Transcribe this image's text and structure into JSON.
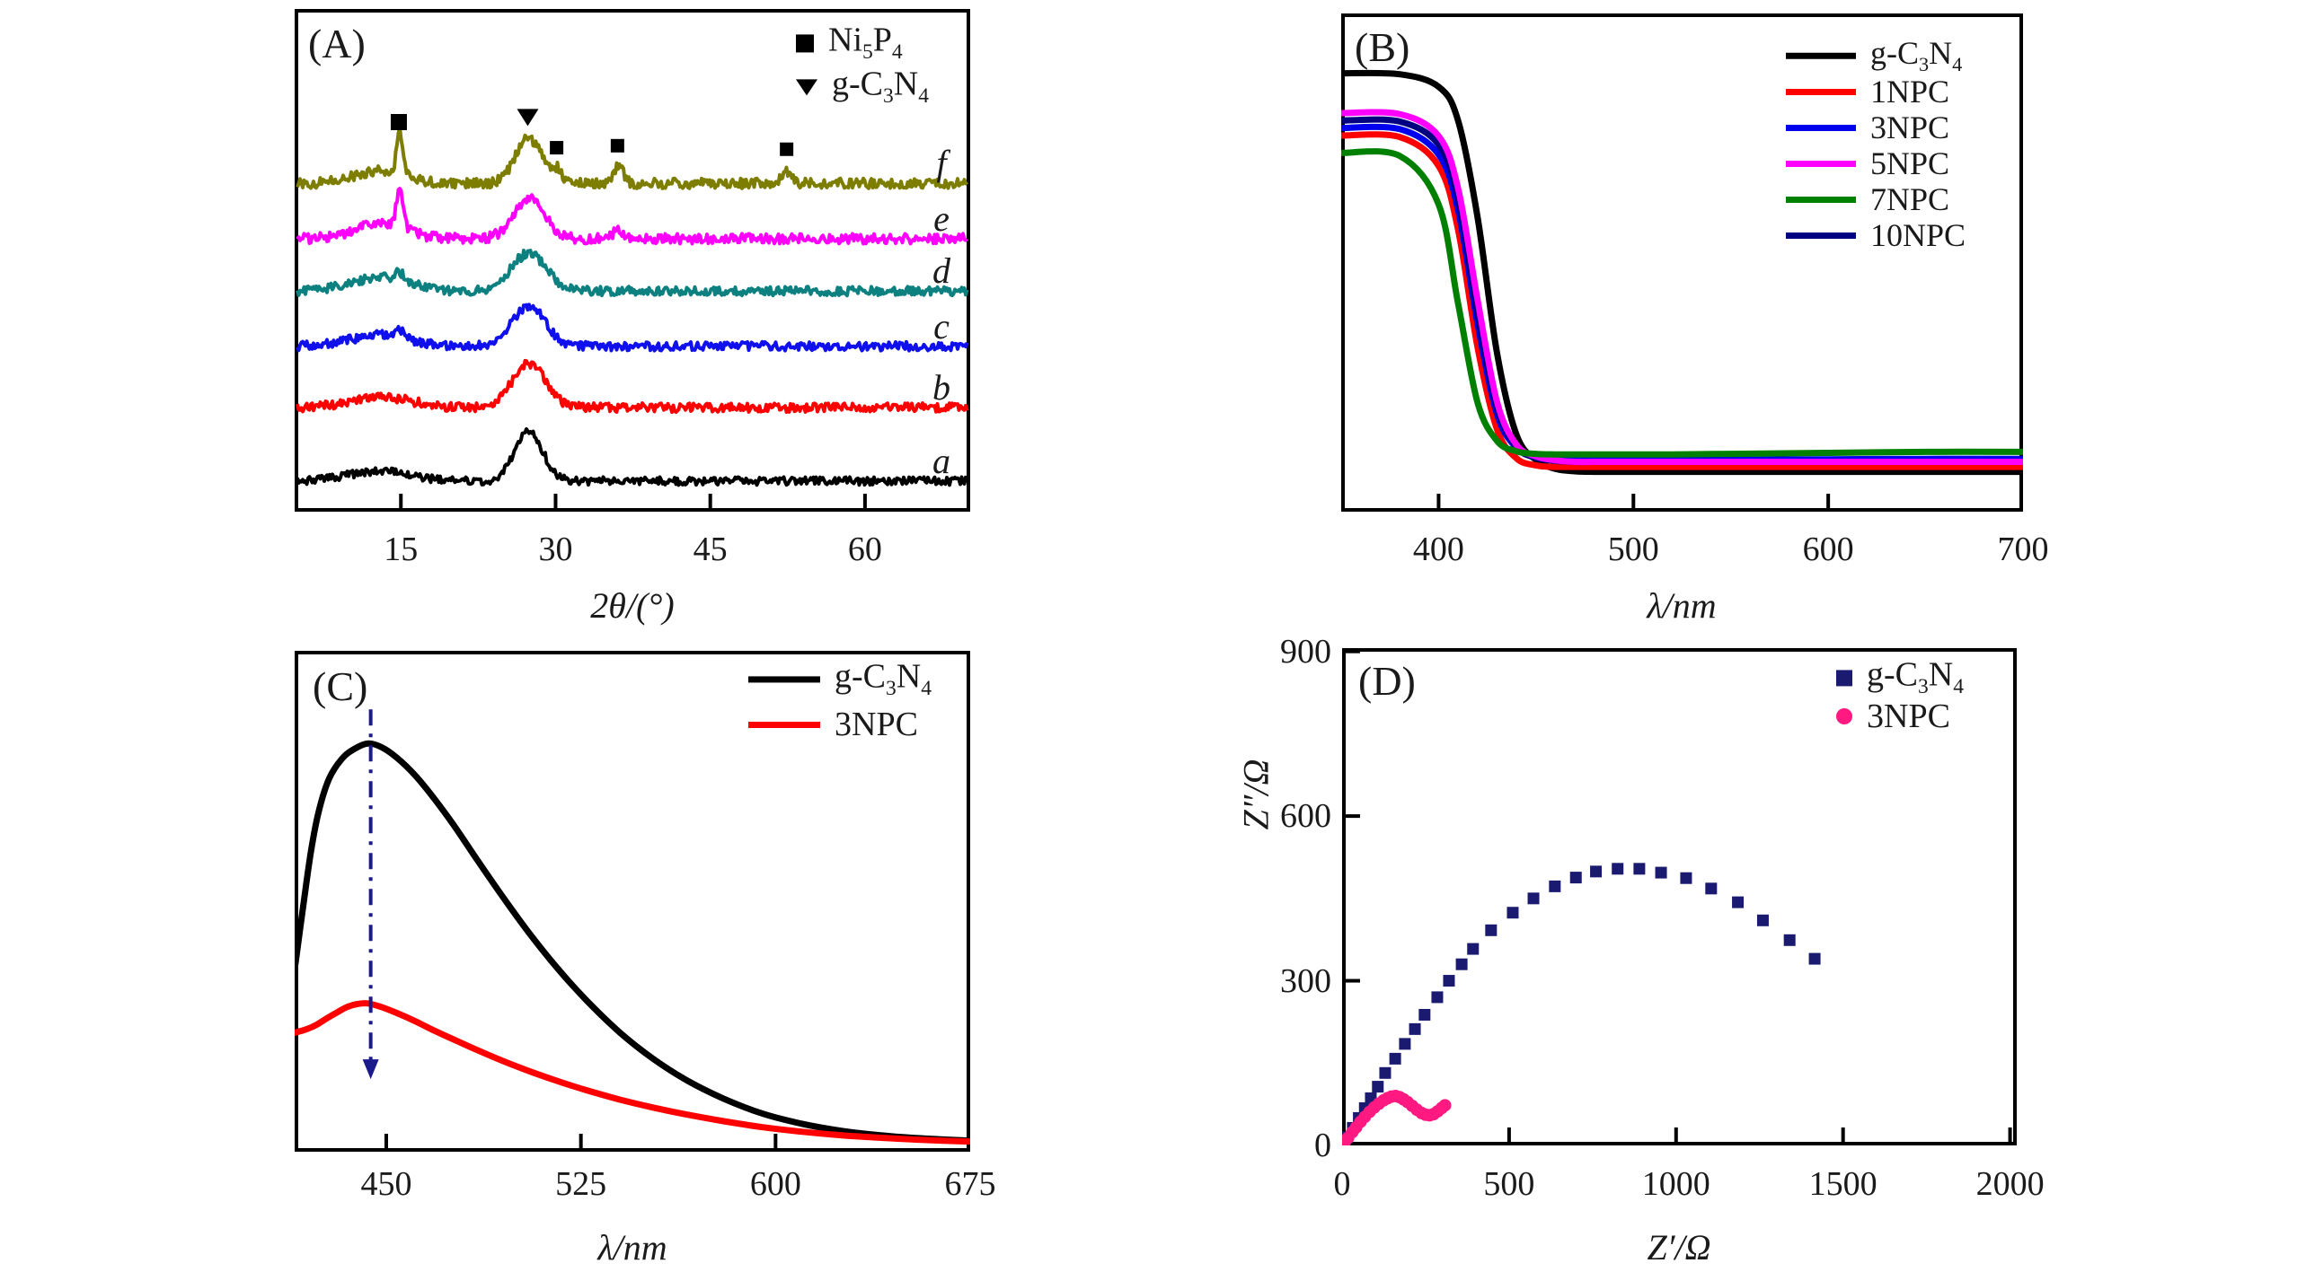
{
  "figure": {
    "background": "#ffffff",
    "text_color": "#1a1a1a"
  },
  "chart_data": [
    {
      "id": "A",
      "type": "line",
      "panel_label": "(A)",
      "xlabel": "2θ/(°)",
      "ylabel": "",
      "xticks": [
        15,
        30,
        45,
        60
      ],
      "xrange": [
        4.7,
        70.2
      ],
      "grid": false,
      "legend_position": "top-right-inside",
      "legend": [
        {
          "marker": "square",
          "color": "#000000",
          "label": "Ni₅P₄"
        },
        {
          "marker": "triangle-down",
          "color": "#000000",
          "label": "g-C₃N₄"
        }
      ],
      "description": "Stacked XRD patterns, curves a–f offset vertically, broad g-C₃N₄ peaks near 13° and 27.4°; e and f also show sharp Ni₅P₄ peaks",
      "series": [
        {
          "name": "a",
          "color": "#000000",
          "offset": 0.939,
          "noise": 0.008,
          "peaks": [
            {
              "c": 13.0,
              "h": 0.02,
              "w": 3.0
            },
            {
              "c": 27.4,
              "h": 0.098,
              "w": 1.35
            }
          ]
        },
        {
          "name": "b",
          "color": "#ff0000",
          "offset": 0.793,
          "noise": 0.009,
          "peaks": [
            {
              "c": 13.0,
              "h": 0.021,
              "w": 3.0
            },
            {
              "c": 27.4,
              "h": 0.088,
              "w": 1.6
            }
          ]
        },
        {
          "name": "c",
          "color": "#1010ee",
          "offset": 0.671,
          "noise": 0.009,
          "peaks": [
            {
              "c": 13.0,
              "h": 0.023,
              "w": 2.8
            },
            {
              "c": 14.9,
              "h": 0.013,
              "w": 0.4
            },
            {
              "c": 27.4,
              "h": 0.08,
              "w": 1.6
            }
          ]
        },
        {
          "name": "d",
          "color": "#0d8080",
          "offset": 0.561,
          "noise": 0.009,
          "peaks": [
            {
              "c": 13.0,
              "h": 0.027,
              "w": 2.8
            },
            {
              "c": 14.9,
              "h": 0.016,
              "w": 0.4
            },
            {
              "c": 27.4,
              "h": 0.075,
              "w": 1.7
            }
          ]
        },
        {
          "name": "e",
          "color": "#ff00ff",
          "offset": 0.457,
          "noise": 0.01,
          "peaks": [
            {
              "c": 13.0,
              "h": 0.029,
              "w": 2.5
            },
            {
              "c": 14.9,
              "h": 0.073,
              "w": 0.35
            },
            {
              "c": 27.4,
              "h": 0.079,
              "w": 1.5
            },
            {
              "c": 36.1,
              "h": 0.018,
              "w": 0.5
            }
          ]
        },
        {
          "name": "f",
          "color": "#7d7d00",
          "offset": 0.347,
          "noise": 0.01,
          "peaks": [
            {
              "c": 13.0,
              "h": 0.025,
              "w": 2.5
            },
            {
              "c": 14.9,
              "h": 0.086,
              "w": 0.3
            },
            {
              "c": 27.4,
              "h": 0.089,
              "w": 1.3
            },
            {
              "c": 30.2,
              "h": 0.023,
              "w": 0.45
            },
            {
              "c": 36.1,
              "h": 0.034,
              "w": 0.5
            },
            {
              "c": 52.4,
              "h": 0.023,
              "w": 0.45
            }
          ]
        }
      ],
      "peak_markers": [
        {
          "marker": "square",
          "two_theta": 14.8,
          "row": 0.225,
          "size": 18
        },
        {
          "marker": "triangle-down",
          "two_theta": 27.3,
          "row": 0.215,
          "size": 24
        },
        {
          "marker": "square",
          "two_theta": 30.1,
          "row": 0.276,
          "size": 15
        },
        {
          "marker": "square",
          "two_theta": 36.0,
          "row": 0.272,
          "size": 15
        },
        {
          "marker": "square",
          "two_theta": 52.4,
          "row": 0.279,
          "size": 15
        }
      ]
    },
    {
      "id": "B",
      "type": "line",
      "panel_label": "(B)",
      "xlabel": "λ/nm",
      "ylabel": "",
      "xticks": [
        400,
        500,
        600,
        700
      ],
      "xrange": [
        350,
        700
      ],
      "grid": false,
      "legend_position": "top-right-inside",
      "legend": [
        {
          "marker": "line",
          "color": "#000000",
          "label": "g-C₃N₄"
        },
        {
          "marker": "line",
          "color": "#ff0000",
          "label": "1NPC"
        },
        {
          "marker": "line",
          "color": "#0000ee",
          "label": "3NPC"
        },
        {
          "marker": "line",
          "color": "#ff00ff",
          "label": "5NPC"
        },
        {
          "marker": "line",
          "color": "#008000",
          "label": "7NPC"
        },
        {
          "marker": "line",
          "color": "#000080",
          "label": "10NPC"
        }
      ],
      "description": "UV-Vis diffuse reflectance spectra, normalized absorbance vs wavelength; absorption edge near 410-425 nm",
      "x": [
        350,
        380,
        400,
        410,
        420,
        430,
        440,
        450,
        460,
        470,
        480,
        490,
        500,
        520,
        550,
        600,
        650,
        700
      ],
      "series": [
        {
          "name": "g-C₃N₄",
          "color": "#000000",
          "values": [
            0.88,
            0.878,
            0.853,
            0.785,
            0.591,
            0.318,
            0.154,
            0.104,
            0.086,
            0.081,
            0.08,
            0.08,
            0.08,
            0.08,
            0.08,
            0.08,
            0.08,
            0.08
          ]
        },
        {
          "name": "1NPC",
          "color": "#ff0000",
          "values": [
            0.755,
            0.752,
            0.694,
            0.566,
            0.33,
            0.165,
            0.107,
            0.093,
            0.09,
            0.09,
            0.09,
            0.09,
            0.09,
            0.09,
            0.09,
            0.09,
            0.09,
            0.09
          ]
        },
        {
          "name": "3NPC",
          "color": "#0000ee",
          "values": [
            0.77,
            0.768,
            0.717,
            0.606,
            0.378,
            0.196,
            0.128,
            0.109,
            0.105,
            0.104,
            0.104,
            0.104,
            0.104,
            0.104,
            0.104,
            0.105,
            0.106,
            0.106
          ]
        },
        {
          "name": "10NPC",
          "color": "#000080",
          "values": [
            0.785,
            0.783,
            0.737,
            0.63,
            0.4,
            0.21,
            0.13,
            0.108,
            0.102,
            0.1,
            0.1,
            0.1,
            0.1,
            0.1,
            0.1,
            0.1,
            0.1,
            0.1
          ]
        },
        {
          "name": "5NPC",
          "color": "#ff00ff",
          "values": [
            0.8,
            0.798,
            0.754,
            0.649,
            0.425,
            0.22,
            0.134,
            0.111,
            0.103,
            0.1,
            0.1,
            0.1,
            0.1,
            0.1,
            0.1,
            0.1,
            0.1,
            0.1
          ]
        },
        {
          "name": "7NPC",
          "color": "#008000",
          "values": [
            0.72,
            0.714,
            0.617,
            0.418,
            0.219,
            0.142,
            0.121,
            0.116,
            0.115,
            0.115,
            0.115,
            0.115,
            0.115,
            0.115,
            0.116,
            0.118,
            0.12,
            0.12
          ]
        }
      ]
    },
    {
      "id": "C",
      "type": "line",
      "panel_label": "(C)",
      "xlabel": "λ/nm",
      "ylabel": "",
      "xticks": [
        450,
        525,
        600,
        675
      ],
      "xrange": [
        414.7,
        675
      ],
      "grid": false,
      "legend_position": "top-right-inside",
      "legend": [
        {
          "marker": "line",
          "color": "#000000",
          "label": "g-C₃N₄"
        },
        {
          "marker": "line",
          "color": "#ff0000",
          "label": "3NPC"
        }
      ],
      "description": "Photoluminescence spectra; peak near 444 nm, 3NPC strongly quenched; dash-dot navy arrow points down at the peak",
      "annotation_arrow": {
        "x": 444,
        "y_top": 0.883,
        "y_tip": 0.145,
        "color": "#1a1a8c",
        "style": "dash-dot"
      },
      "series": [
        {
          "name": "g-C₃N₄",
          "color": "#000000",
          "points": [
            [
              415,
              0.375
            ],
            [
              418,
              0.49
            ],
            [
              421,
              0.6
            ],
            [
              424,
              0.68
            ],
            [
              428,
              0.745
            ],
            [
              433,
              0.785
            ],
            [
              438,
              0.805
            ],
            [
              443,
              0.815
            ],
            [
              448,
              0.808
            ],
            [
              454,
              0.787
            ],
            [
              461,
              0.752
            ],
            [
              468,
              0.708
            ],
            [
              476,
              0.652
            ],
            [
              485,
              0.583
            ],
            [
              495,
              0.508
            ],
            [
              505,
              0.437
            ],
            [
              516,
              0.366
            ],
            [
              527,
              0.303
            ],
            [
              540,
              0.238
            ],
            [
              553,
              0.185
            ],
            [
              566,
              0.142
            ],
            [
              580,
              0.106
            ],
            [
              595,
              0.076
            ],
            [
              610,
              0.056
            ],
            [
              625,
              0.042
            ],
            [
              640,
              0.033
            ],
            [
              655,
              0.027
            ],
            [
              675,
              0.022
            ]
          ]
        },
        {
          "name": "3NPC",
          "color": "#ff0000",
          "points": [
            [
              415,
              0.238
            ],
            [
              419,
              0.244
            ],
            [
              423,
              0.253
            ],
            [
              427,
              0.266
            ],
            [
              431,
              0.278
            ],
            [
              435,
              0.289
            ],
            [
              439,
              0.295
            ],
            [
              443,
              0.296
            ],
            [
              448,
              0.289
            ],
            [
              454,
              0.277
            ],
            [
              461,
              0.261
            ],
            [
              468,
              0.243
            ],
            [
              476,
              0.224
            ],
            [
              485,
              0.203
            ],
            [
              495,
              0.181
            ],
            [
              505,
              0.161
            ],
            [
              516,
              0.141
            ],
            [
              527,
              0.123
            ],
            [
              540,
              0.104
            ],
            [
              553,
              0.088
            ],
            [
              566,
              0.074
            ],
            [
              580,
              0.061
            ],
            [
              595,
              0.049
            ],
            [
              610,
              0.04
            ],
            [
              625,
              0.033
            ],
            [
              640,
              0.028
            ],
            [
              655,
              0.024
            ],
            [
              675,
              0.02
            ]
          ]
        }
      ]
    },
    {
      "id": "D",
      "type": "scatter",
      "panel_label": "(D)",
      "xlabel": "Z′/Ω",
      "ylabel": "Z″/Ω",
      "xticks": [
        0,
        500,
        1000,
        1500,
        2000
      ],
      "yticks": [
        0,
        300,
        600,
        900
      ],
      "xrange": [
        0,
        2020
      ],
      "yrange": [
        0,
        906
      ],
      "grid": false,
      "legend_position": "top-right-inside",
      "legend": [
        {
          "marker": "square",
          "color": "#1a1a70",
          "label": "g-C₃N₄"
        },
        {
          "marker": "circle",
          "color": "#ff1980",
          "label": "3NPC"
        }
      ],
      "description": "EIS Nyquist plots; g-C₃N₄ large arc (apex ~(860, 505)), 3NPC small arc (apex ~(155, 90))",
      "series": [
        {
          "name": "g-C₃N₄",
          "marker": "square",
          "color": "#1a1a70",
          "points": [
            [
              15,
              15
            ],
            [
              32,
              32
            ],
            [
              50,
              50
            ],
            [
              68,
              68
            ],
            [
              86,
              86
            ],
            [
              107,
              107
            ],
            [
              129,
              132
            ],
            [
              159,
              158
            ],
            [
              188,
              185
            ],
            [
              218,
              212
            ],
            [
              247,
              238
            ],
            [
              285,
              270
            ],
            [
              320,
              300
            ],
            [
              358,
              330
            ],
            [
              392,
              358
            ],
            [
              446,
              392
            ],
            [
              511,
              424
            ],
            [
              573,
              450
            ],
            [
              637,
              472
            ],
            [
              700,
              488
            ],
            [
              760,
              499
            ],
            [
              825,
              504
            ],
            [
              890,
              504
            ],
            [
              955,
              497
            ],
            [
              1030,
              487
            ],
            [
              1105,
              468
            ],
            [
              1185,
              443
            ],
            [
              1260,
              410
            ],
            [
              1340,
              374
            ],
            [
              1415,
              340
            ]
          ]
        },
        {
          "name": "3NPC",
          "marker": "circle",
          "color": "#ff1980",
          "points": [
            [
              8,
              6
            ],
            [
              18,
              14
            ],
            [
              30,
              24
            ],
            [
              42,
              33
            ],
            [
              55,
              43
            ],
            [
              68,
              52
            ],
            [
              82,
              61
            ],
            [
              96,
              69
            ],
            [
              110,
              76
            ],
            [
              124,
              82
            ],
            [
              136,
              86
            ],
            [
              148,
              89
            ],
            [
              160,
              90
            ],
            [
              172,
              88
            ],
            [
              184,
              84
            ],
            [
              196,
              79
            ],
            [
              210,
              72
            ],
            [
              224,
              65
            ],
            [
              238,
              59
            ],
            [
              250,
              56
            ],
            [
              262,
              55
            ],
            [
              274,
              57
            ],
            [
              286,
              62
            ],
            [
              298,
              68
            ],
            [
              308,
              73
            ]
          ]
        }
      ]
    }
  ]
}
